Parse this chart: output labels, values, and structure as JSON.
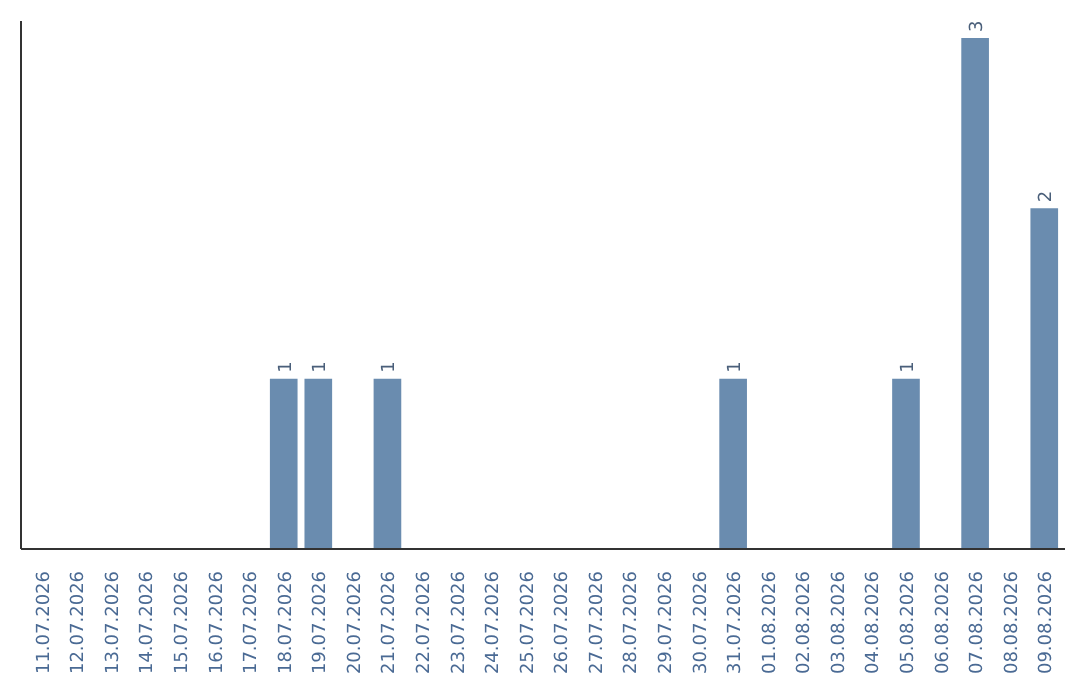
{
  "chart_data": {
    "type": "bar",
    "categories": [
      "11.07.2026",
      "12.07.2026",
      "13.07.2026",
      "14.07.2026",
      "15.07.2026",
      "16.07.2026",
      "17.07.2026",
      "18.07.2026",
      "19.07.2026",
      "20.07.2026",
      "21.07.2026",
      "22.07.2026",
      "23.07.2026",
      "24.07.2026",
      "25.07.2026",
      "26.07.2026",
      "27.07.2026",
      "28.07.2026",
      "29.07.2026",
      "30.07.2026",
      "31.07.2026",
      "01.08.2026",
      "02.08.2026",
      "03.08.2026",
      "04.08.2026",
      "05.08.2026",
      "06.08.2026",
      "07.08.2026",
      "08.08.2026",
      "09.08.2026"
    ],
    "values": [
      0,
      0,
      0,
      0,
      0,
      0,
      0,
      1,
      1,
      0,
      1,
      0,
      0,
      0,
      0,
      0,
      0,
      0,
      0,
      0,
      1,
      0,
      0,
      0,
      0,
      1,
      0,
      3,
      0,
      2
    ],
    "value_labels": [
      null,
      null,
      null,
      null,
      null,
      null,
      null,
      "1",
      "1",
      null,
      "1",
      null,
      null,
      null,
      null,
      null,
      null,
      null,
      null,
      null,
      "1",
      null,
      null,
      null,
      null,
      "1",
      null,
      "3",
      null,
      "2"
    ],
    "color": "#6a8caf",
    "ylim": [
      0,
      3.1
    ],
    "tick_labels": "x",
    "grid": false
  }
}
